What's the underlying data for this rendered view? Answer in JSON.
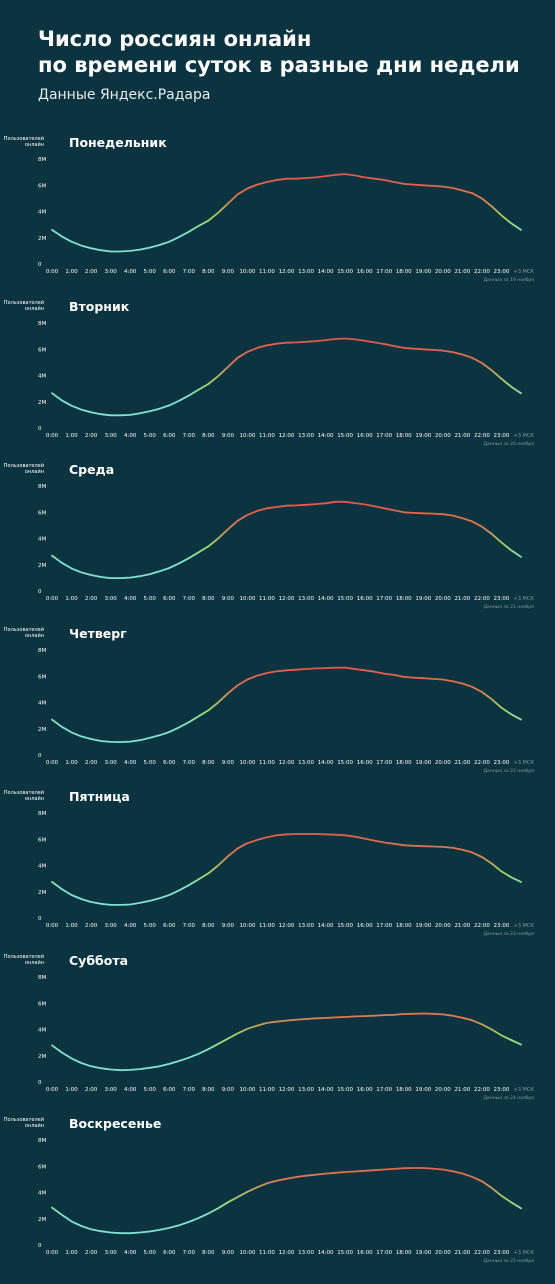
{
  "header": {
    "title_line1": "Число россиян онлайн",
    "title_line2": "по времени суток в разные дни недели",
    "subtitle": "Данные Яндекс.Радара"
  },
  "colors": {
    "background": "#0c3340",
    "low": "#7fe3d6",
    "mid": "#9ddc6a",
    "high": "#e07a52",
    "peak": "#e4554b"
  },
  "chart_data": [
    {
      "type": "line",
      "title": "Понедельник",
      "ylabel": "Пользователей онлайн",
      "yticks": [
        "0",
        "2M",
        "4M",
        "6M",
        "8M"
      ],
      "ylim": [
        0,
        8
      ],
      "xticks": [
        "0:00",
        "1:00",
        "2:00",
        "3:00",
        "4:00",
        "5:00",
        "6:00",
        "7:00",
        "8:00",
        "9:00",
        "10:00",
        "11:00",
        "12:00",
        "13:00",
        "14:00",
        "15:00",
        "16:00",
        "17:00",
        "18:00",
        "19:00",
        "20:00",
        "21:00",
        "22:00",
        "23:00"
      ],
      "tz_note": "+3 МСК",
      "footnote": "Данные за 19 ноября",
      "x": [
        0,
        0.5,
        1,
        1.5,
        2,
        2.5,
        3,
        3.5,
        4,
        4.5,
        5,
        5.5,
        6,
        6.5,
        7,
        7.5,
        8,
        8.5,
        9,
        9.5,
        10,
        10.5,
        11,
        11.5,
        12,
        12.5,
        13,
        13.5,
        14,
        14.5,
        15,
        15.5,
        16,
        16.5,
        17,
        17.5,
        18,
        18.5,
        19,
        19.5,
        20,
        20.5,
        21,
        21.5,
        22,
        22.5,
        23,
        23.5,
        24
      ],
      "values": [
        2.6,
        2.1,
        1.7,
        1.4,
        1.2,
        1.05,
        0.95,
        0.95,
        1.0,
        1.1,
        1.25,
        1.45,
        1.7,
        2.05,
        2.45,
        2.9,
        3.3,
        3.9,
        4.6,
        5.3,
        5.75,
        6.05,
        6.25,
        6.4,
        6.5,
        6.5,
        6.55,
        6.6,
        6.7,
        6.8,
        6.85,
        6.75,
        6.6,
        6.5,
        6.4,
        6.25,
        6.1,
        6.05,
        6.0,
        5.95,
        5.9,
        5.8,
        5.6,
        5.4,
        5.0,
        4.4,
        3.7,
        3.1,
        2.6
      ]
    },
    {
      "type": "line",
      "title": "Вторник",
      "ylabel": "Пользователей онлайн",
      "yticks": [
        "0",
        "2M",
        "4M",
        "6M",
        "8M"
      ],
      "ylim": [
        0,
        8
      ],
      "xticks": [
        "0:00",
        "1:00",
        "2:00",
        "3:00",
        "4:00",
        "5:00",
        "6:00",
        "7:00",
        "8:00",
        "9:00",
        "10:00",
        "11:00",
        "12:00",
        "13:00",
        "14:00",
        "15:00",
        "16:00",
        "17:00",
        "18:00",
        "19:00",
        "20:00",
        "21:00",
        "22:00",
        "23:00"
      ],
      "tz_note": "+3 МСК",
      "footnote": "Данные за 20 ноября",
      "x": [
        0,
        0.5,
        1,
        1.5,
        2,
        2.5,
        3,
        3.5,
        4,
        4.5,
        5,
        5.5,
        6,
        6.5,
        7,
        7.5,
        8,
        8.5,
        9,
        9.5,
        10,
        10.5,
        11,
        11.5,
        12,
        12.5,
        13,
        13.5,
        14,
        14.5,
        15,
        15.5,
        16,
        16.5,
        17,
        17.5,
        18,
        18.5,
        19,
        19.5,
        20,
        20.5,
        21,
        21.5,
        22,
        22.5,
        23,
        23.5,
        24
      ],
      "values": [
        2.65,
        2.1,
        1.7,
        1.4,
        1.2,
        1.05,
        0.97,
        0.97,
        1.0,
        1.12,
        1.27,
        1.47,
        1.72,
        2.07,
        2.47,
        2.92,
        3.35,
        3.95,
        4.65,
        5.35,
        5.8,
        6.1,
        6.3,
        6.42,
        6.5,
        6.52,
        6.57,
        6.62,
        6.7,
        6.78,
        6.82,
        6.75,
        6.65,
        6.52,
        6.4,
        6.25,
        6.1,
        6.05,
        6.0,
        5.95,
        5.9,
        5.78,
        5.6,
        5.35,
        4.95,
        4.4,
        3.75,
        3.15,
        2.65
      ]
    },
    {
      "type": "line",
      "title": "Среда",
      "ylabel": "Пользователей онлайн",
      "yticks": [
        "0",
        "2M",
        "4M",
        "6M",
        "8M"
      ],
      "ylim": [
        0,
        8
      ],
      "xticks": [
        "0:00",
        "1:00",
        "2:00",
        "3:00",
        "4:00",
        "5:00",
        "6:00",
        "7:00",
        "8:00",
        "9:00",
        "10:00",
        "11:00",
        "12:00",
        "13:00",
        "14:00",
        "15:00",
        "16:00",
        "17:00",
        "18:00",
        "19:00",
        "20:00",
        "21:00",
        "22:00",
        "23:00"
      ],
      "tz_note": "+3 МСК",
      "footnote": "Данные за 21 ноября",
      "x": [
        0,
        0.5,
        1,
        1.5,
        2,
        2.5,
        3,
        3.5,
        4,
        4.5,
        5,
        5.5,
        6,
        6.5,
        7,
        7.5,
        8,
        8.5,
        9,
        9.5,
        10,
        10.5,
        11,
        11.5,
        12,
        12.5,
        13,
        13.5,
        14,
        14.5,
        15,
        15.5,
        16,
        16.5,
        17,
        17.5,
        18,
        18.5,
        19,
        19.5,
        20,
        20.5,
        21,
        21.5,
        22,
        22.5,
        23,
        23.5,
        24
      ],
      "values": [
        2.7,
        2.15,
        1.72,
        1.42,
        1.22,
        1.07,
        0.98,
        0.98,
        1.02,
        1.13,
        1.28,
        1.5,
        1.75,
        2.1,
        2.5,
        2.95,
        3.4,
        4.0,
        4.7,
        5.35,
        5.8,
        6.1,
        6.3,
        6.4,
        6.5,
        6.52,
        6.57,
        6.62,
        6.68,
        6.8,
        6.8,
        6.7,
        6.6,
        6.45,
        6.3,
        6.15,
        6.0,
        5.95,
        5.92,
        5.9,
        5.85,
        5.75,
        5.55,
        5.3,
        4.9,
        4.35,
        3.7,
        3.1,
        2.6
      ]
    },
    {
      "type": "line",
      "title": "Четверг",
      "ylabel": "Пользователей онлайн",
      "yticks": [
        "0",
        "2M",
        "4M",
        "6M",
        "8M"
      ],
      "ylim": [
        0,
        8
      ],
      "xticks": [
        "0:00",
        "1:00",
        "2:00",
        "3:00",
        "4:00",
        "5:00",
        "6:00",
        "7:00",
        "8:00",
        "9:00",
        "10:00",
        "11:00",
        "12:00",
        "13:00",
        "14:00",
        "15:00",
        "16:00",
        "17:00",
        "18:00",
        "19:00",
        "20:00",
        "21:00",
        "22:00",
        "23:00"
      ],
      "tz_note": "+3 МСК",
      "footnote": "Данные за 22 ноября",
      "x": [
        0,
        0.5,
        1,
        1.5,
        2,
        2.5,
        3,
        3.5,
        4,
        4.5,
        5,
        5.5,
        6,
        6.5,
        7,
        7.5,
        8,
        8.5,
        9,
        9.5,
        10,
        10.5,
        11,
        11.5,
        12,
        12.5,
        13,
        13.5,
        14,
        14.5,
        15,
        15.5,
        16,
        16.5,
        17,
        17.5,
        18,
        18.5,
        19,
        19.5,
        20,
        20.5,
        21,
        21.5,
        22,
        22.5,
        23,
        23.5,
        24
      ],
      "values": [
        2.7,
        2.15,
        1.72,
        1.42,
        1.22,
        1.07,
        1.0,
        0.98,
        1.02,
        1.13,
        1.3,
        1.5,
        1.75,
        2.1,
        2.5,
        2.95,
        3.4,
        4.0,
        4.7,
        5.3,
        5.75,
        6.05,
        6.25,
        6.38,
        6.45,
        6.5,
        6.55,
        6.6,
        6.62,
        6.65,
        6.65,
        6.55,
        6.45,
        6.35,
        6.2,
        6.1,
        5.95,
        5.9,
        5.85,
        5.8,
        5.75,
        5.62,
        5.45,
        5.2,
        4.8,
        4.25,
        3.6,
        3.1,
        2.7
      ]
    },
    {
      "type": "line",
      "title": "Пятница",
      "ylabel": "Пользователей онлайн",
      "yticks": [
        "0",
        "2M",
        "4M",
        "6M",
        "8M"
      ],
      "ylim": [
        0,
        8
      ],
      "xticks": [
        "0:00",
        "1:00",
        "2:00",
        "3:00",
        "4:00",
        "5:00",
        "6:00",
        "7:00",
        "8:00",
        "9:00",
        "10:00",
        "11:00",
        "12:00",
        "13:00",
        "14:00",
        "15:00",
        "16:00",
        "17:00",
        "18:00",
        "19:00",
        "20:00",
        "21:00",
        "22:00",
        "23:00"
      ],
      "tz_note": "+3 МСК",
      "footnote": "Данные за 23 ноября",
      "x": [
        0,
        0.5,
        1,
        1.5,
        2,
        2.5,
        3,
        3.5,
        4,
        4.5,
        5,
        5.5,
        6,
        6.5,
        7,
        7.5,
        8,
        8.5,
        9,
        9.5,
        10,
        10.5,
        11,
        11.5,
        12,
        12.5,
        13,
        13.5,
        14,
        14.5,
        15,
        15.5,
        16,
        16.5,
        17,
        17.5,
        18,
        18.5,
        19,
        19.5,
        20,
        20.5,
        21,
        21.5,
        22,
        22.5,
        23,
        23.5,
        24
      ],
      "values": [
        2.75,
        2.2,
        1.75,
        1.45,
        1.22,
        1.08,
        1.0,
        1.0,
        1.03,
        1.15,
        1.3,
        1.5,
        1.75,
        2.1,
        2.5,
        2.95,
        3.4,
        4.0,
        4.7,
        5.3,
        5.7,
        5.95,
        6.15,
        6.3,
        6.38,
        6.4,
        6.4,
        6.4,
        6.38,
        6.35,
        6.3,
        6.2,
        6.05,
        5.9,
        5.75,
        5.65,
        5.55,
        5.5,
        5.47,
        5.45,
        5.42,
        5.35,
        5.2,
        5.0,
        4.65,
        4.15,
        3.55,
        3.1,
        2.75
      ]
    },
    {
      "type": "line",
      "title": "Суббота",
      "ylabel": "Пользователей онлайн",
      "yticks": [
        "0",
        "2M",
        "4M",
        "6M",
        "8M"
      ],
      "ylim": [
        0,
        8
      ],
      "xticks": [
        "0:00",
        "1:00",
        "2:00",
        "3:00",
        "4:00",
        "5:00",
        "6:00",
        "7:00",
        "8:00",
        "9:00",
        "10:00",
        "11:00",
        "12:00",
        "13:00",
        "14:00",
        "15:00",
        "16:00",
        "17:00",
        "18:00",
        "19:00",
        "20:00",
        "21:00",
        "22:00",
        "23:00"
      ],
      "tz_note": "+3 МСК",
      "footnote": "Данные за 24 ноября",
      "x": [
        0,
        0.5,
        1,
        1.5,
        2,
        2.5,
        3,
        3.5,
        4,
        4.5,
        5,
        5.5,
        6,
        6.5,
        7,
        7.5,
        8,
        8.5,
        9,
        9.5,
        10,
        10.5,
        11,
        11.5,
        12,
        12.5,
        13,
        13.5,
        14,
        14.5,
        15,
        15.5,
        16,
        16.5,
        17,
        17.5,
        18,
        18.5,
        19,
        19.5,
        20,
        20.5,
        21,
        21.5,
        22,
        22.5,
        23,
        23.5,
        24
      ],
      "values": [
        2.8,
        2.25,
        1.8,
        1.45,
        1.2,
        1.05,
        0.95,
        0.9,
        0.92,
        0.98,
        1.08,
        1.2,
        1.38,
        1.6,
        1.85,
        2.15,
        2.5,
        2.9,
        3.3,
        3.7,
        4.05,
        4.3,
        4.5,
        4.6,
        4.68,
        4.75,
        4.8,
        4.85,
        4.88,
        4.92,
        4.95,
        5.0,
        5.02,
        5.05,
        5.1,
        5.12,
        5.18,
        5.2,
        5.22,
        5.2,
        5.15,
        5.05,
        4.9,
        4.7,
        4.4,
        4.0,
        3.55,
        3.2,
        2.85
      ]
    },
    {
      "type": "line",
      "title": "Воскресенье",
      "ylabel": "Пользователей онлайн",
      "yticks": [
        "0",
        "2M",
        "4M",
        "6M",
        "8M"
      ],
      "ylim": [
        0,
        8
      ],
      "xticks": [
        "0:00",
        "1:00",
        "2:00",
        "3:00",
        "4:00",
        "5:00",
        "6:00",
        "7:00",
        "8:00",
        "9:00",
        "10:00",
        "11:00",
        "12:00",
        "13:00",
        "14:00",
        "15:00",
        "16:00",
        "17:00",
        "18:00",
        "19:00",
        "20:00",
        "21:00",
        "22:00",
        "23:00"
      ],
      "tz_note": "+3 МСК",
      "footnote": "Данные за 25 ноября",
      "x": [
        0,
        0.5,
        1,
        1.5,
        2,
        2.5,
        3,
        3.5,
        4,
        4.5,
        5,
        5.5,
        6,
        6.5,
        7,
        7.5,
        8,
        8.5,
        9,
        9.5,
        10,
        10.5,
        11,
        11.5,
        12,
        12.5,
        13,
        13.5,
        14,
        14.5,
        15,
        15.5,
        16,
        16.5,
        17,
        17.5,
        18,
        18.5,
        19,
        19.5,
        20,
        20.5,
        21,
        21.5,
        22,
        22.5,
        23,
        23.5,
        24
      ],
      "values": [
        2.85,
        2.3,
        1.8,
        1.45,
        1.2,
        1.05,
        0.95,
        0.9,
        0.9,
        0.95,
        1.03,
        1.15,
        1.3,
        1.5,
        1.75,
        2.05,
        2.4,
        2.8,
        3.25,
        3.65,
        4.05,
        4.4,
        4.7,
        4.9,
        5.05,
        5.18,
        5.28,
        5.36,
        5.44,
        5.5,
        5.56,
        5.6,
        5.65,
        5.7,
        5.75,
        5.8,
        5.85,
        5.87,
        5.87,
        5.82,
        5.75,
        5.62,
        5.45,
        5.2,
        4.85,
        4.35,
        3.75,
        3.25,
        2.8
      ]
    }
  ]
}
